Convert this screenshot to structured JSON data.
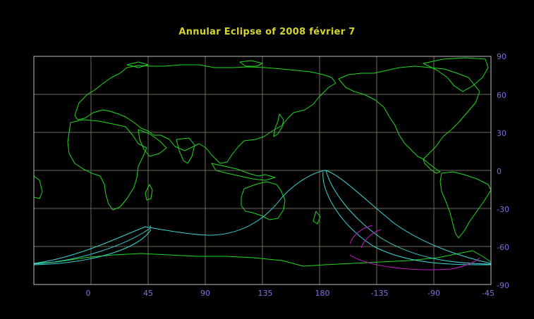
{
  "title": "Annular  Eclipse  of  2008  février  7",
  "colors": {
    "background": "#000000",
    "title": "#d7d42a",
    "frame": "#c0c0c0",
    "grid": "#6b6b5a",
    "coastline": "#22d822",
    "central_path": "#3ed2d2",
    "penumbra": "#c21ec2",
    "tick_labels": "#7f6fe0"
  },
  "axes": {
    "lon_ticks": [
      "0",
      "45",
      "90",
      "135",
      "180",
      "-135",
      "-90",
      "-45"
    ],
    "lat_ticks": [
      "90",
      "60",
      "30",
      "0",
      "-30",
      "-60",
      "-90"
    ]
  }
}
